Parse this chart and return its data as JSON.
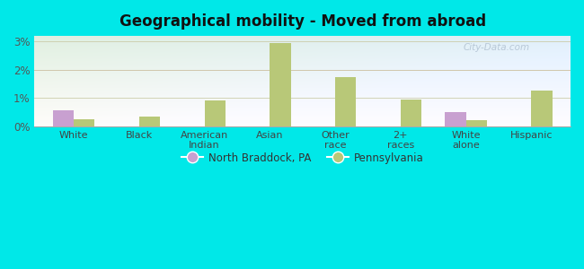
{
  "title": "Geographical mobility - Moved from abroad",
  "categories": [
    "White",
    "Black",
    "American\nIndian",
    "Asian",
    "Other\nrace",
    "2+\nraces",
    "White\nalone",
    "Hispanic"
  ],
  "north_braddock": [
    0.55,
    0.0,
    0.0,
    0.0,
    0.0,
    0.0,
    0.5,
    0.0
  ],
  "pennsylvania": [
    0.25,
    0.35,
    0.9,
    2.95,
    1.75,
    0.95,
    0.2,
    1.25
  ],
  "nb_color": "#c8a0d0",
  "pa_color": "#b8c878",
  "bg_color": "#00e8e8",
  "ylim": [
    0,
    3.2
  ],
  "yticks": [
    0,
    1,
    2,
    3
  ],
  "ytick_labels": [
    "0%",
    "1%",
    "2%",
    "3%"
  ],
  "bar_width": 0.32,
  "legend_labels": [
    "North Braddock, PA",
    "Pennsylvania"
  ],
  "watermark": "City-Data.com"
}
